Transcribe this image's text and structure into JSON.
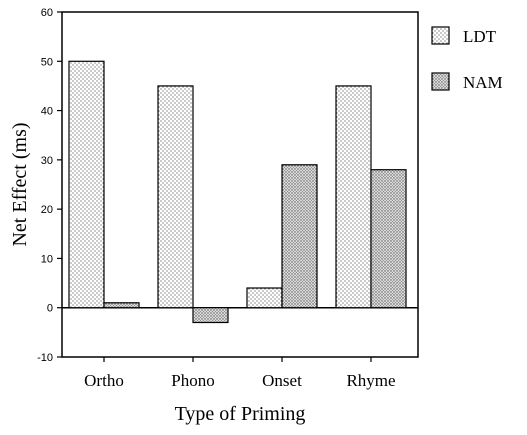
{
  "chart_data": {
    "type": "bar",
    "title": "",
    "xlabel": "Type of Priming",
    "ylabel": "Net Effect (ms)",
    "categories": [
      "Ortho",
      "Phono",
      "Onset",
      "Rhyme"
    ],
    "series": [
      {
        "name": "LDT",
        "values": [
          50,
          45,
          4,
          45
        ],
        "color": "#f4f4f4",
        "pattern": "sparse-dots"
      },
      {
        "name": "NAM",
        "values": [
          1,
          -3,
          29,
          28
        ],
        "color": "#c8c8c8",
        "pattern": "dense-dots"
      }
    ],
    "ylim": [
      -10,
      60
    ],
    "yticks": [
      -10,
      0,
      10,
      20,
      30,
      40,
      50,
      60
    ],
    "grid": false,
    "legend_position": "right"
  }
}
